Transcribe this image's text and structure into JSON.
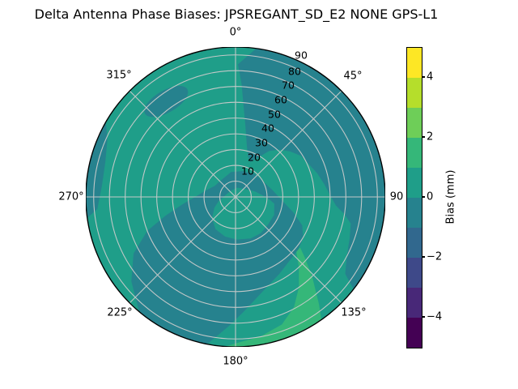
{
  "title": "Delta Antenna Phase Biases: JPSREGANT_SD_E2 NONE GPS-L1",
  "colors": {
    "band_neg1_0": "#26828e",
    "band_0_1": "#1f9e89",
    "band_1_2": "#35b779",
    "grid": "#cccccc",
    "outline": "#000000"
  },
  "polar": {
    "angle_labels": [
      "0°",
      "45°",
      "90",
      "135°",
      "180°",
      "225°",
      "270°",
      "315°"
    ],
    "radial_ticks": [
      "10",
      "20",
      "30",
      "40",
      "50",
      "60",
      "70",
      "80",
      "90"
    ]
  },
  "colorbar": {
    "label": "Bias (mm)",
    "ticks": [
      "4",
      "2",
      "0",
      "−2",
      "−4"
    ],
    "segment_colors_top_to_bottom": [
      "#fde725",
      "#b5de2b",
      "#6ece58",
      "#35b779",
      "#1f9e89",
      "#26828e",
      "#31688e",
      "#3e4989",
      "#482878",
      "#440154"
    ]
  },
  "chart_data": {
    "type": "polar_contour",
    "title": "Delta Antenna Phase Biases: JPSREGANT_SD_E2 NONE GPS-L1",
    "colormap": "viridis, discrete 10 bands",
    "value_label": "Bias (mm)",
    "value_range": [
      -5,
      5
    ],
    "level_step": 1,
    "colorbar_ticks": [
      4,
      2,
      0,
      -2,
      -4
    ],
    "angular_ticks_deg": [
      0,
      45,
      90,
      135,
      180,
      225,
      270,
      315
    ],
    "angular_tick_labels": [
      "0°",
      "45°",
      "90",
      "135°",
      "180°",
      "225°",
      "270°",
      "315°"
    ],
    "radial_ticks": [
      10,
      20,
      30,
      40,
      50,
      60,
      70,
      80,
      90
    ],
    "radial_max": 95,
    "orientation": "0° at top, azimuth increases clockwise, radial labels along ~22.5°",
    "grid": true,
    "legend_position": "colorbar right",
    "observed_bands_mm": [
      {
        "region": "large outer region, azimuth ~10°–128°, radius ~25–95",
        "bias_mm": "-1 to 0"
      },
      {
        "region": "most of upper-left hemisphere (~225°–45° azimuth)",
        "bias_mm": "0 to 1"
      },
      {
        "region": "elongated patch near 320° azimuth, radius ~60–80",
        "bias_mm": "-1 to 0"
      },
      {
        "region": "thin sliver on left rim, azimuth ~262°–300°",
        "bias_mm": "-1 to 0"
      },
      {
        "region": "large lower-left/central region from center to rim at ~191°–220° azimuth",
        "bias_mm": "-1 to 0"
      },
      {
        "region": "small pocket just below center, radius < ~28",
        "bias_mm": "0 to 1"
      },
      {
        "region": "curved bright streak near lower-right rim, azimuth ~128°–184°, radius ~50–95",
        "bias_mm": "1 to 2"
      },
      {
        "region": "rim band azimuth ~220°–260° and gap near 185°–190°",
        "bias_mm": "0 to 1"
      }
    ]
  }
}
